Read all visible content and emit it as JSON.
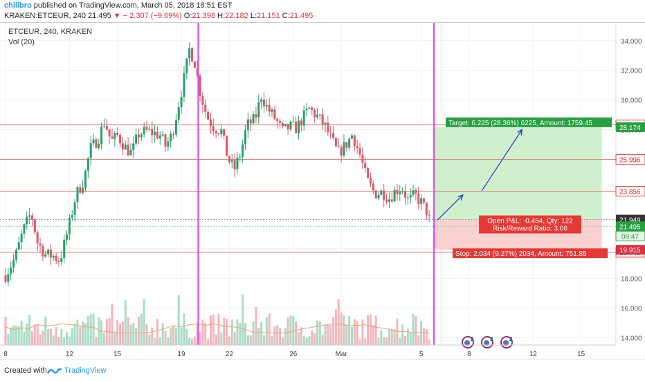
{
  "header": {
    "user": "chillbro",
    "published": " published on TradingView.com, March 05, 2018 18:51 EST",
    "symbol_line": "KRAKEN:ETCEUR, 240",
    "last": "21.495",
    "change": "− 2.307 (−9.69%)",
    "o_label": "O:",
    "o": "21.398",
    "h_label": "H:",
    "h": "22.182",
    "l_label": "L:",
    "l": "21.151",
    "c_label": "C:",
    "c": "21.495"
  },
  "chart_legend": {
    "symbol": "ETCEUR, 240, KRAKEN",
    "indicator": "Vol (20)"
  },
  "chart_data": {
    "type": "candlestick",
    "ylim": [
      13.5,
      35.2
    ],
    "y_ticks": [
      "14.000",
      "16.000",
      "18.000",
      "20.000",
      "22.000",
      "24.000",
      "26.000",
      "28.000",
      "30.000",
      "32.000",
      "34.000"
    ],
    "x_ticks": [
      {
        "label": "8",
        "day": 8
      },
      {
        "label": "12",
        "day": 12
      },
      {
        "label": "15",
        "day": 15
      },
      {
        "label": "19",
        "day": 19
      },
      {
        "label": "22",
        "day": 22
      },
      {
        "label": "26",
        "day": 26
      },
      {
        "label": "Mar",
        "day": 29
      },
      {
        "label": "5",
        "day": 34
      },
      {
        "label": "8",
        "day": 37
      },
      {
        "label": "12",
        "day": 41
      },
      {
        "label": "15",
        "day": 44
      }
    ],
    "price_keypoints": [
      [
        8.0,
        18.2
      ],
      [
        8.6,
        19.4
      ],
      [
        9.1,
        21.2
      ],
      [
        9.6,
        22.4
      ],
      [
        10.0,
        20.4
      ],
      [
        10.5,
        19.6
      ],
      [
        11.0,
        19.5
      ],
      [
        11.4,
        19.2
      ],
      [
        11.9,
        21.2
      ],
      [
        12.4,
        23.6
      ],
      [
        12.9,
        24.6
      ],
      [
        13.3,
        26.7
      ],
      [
        13.8,
        27.4
      ],
      [
        14.2,
        28.6
      ],
      [
        14.6,
        27.2
      ],
      [
        15.0,
        27.6
      ],
      [
        15.5,
        26.8
      ],
      [
        15.9,
        26.4
      ],
      [
        16.3,
        27.7
      ],
      [
        16.8,
        27.9
      ],
      [
        17.2,
        27.8
      ],
      [
        17.7,
        27.6
      ],
      [
        18.0,
        26.9
      ],
      [
        18.4,
        27.6
      ],
      [
        18.8,
        29.6
      ],
      [
        19.2,
        31.6
      ],
      [
        19.5,
        33.4
      ],
      [
        19.8,
        32.7
      ],
      [
        20.2,
        30.4
      ],
      [
        20.6,
        28.9
      ],
      [
        21.0,
        28.2
      ],
      [
        21.5,
        27.9
      ],
      [
        21.9,
        26.1
      ],
      [
        22.3,
        25.3
      ],
      [
        22.7,
        26.4
      ],
      [
        23.1,
        28.3
      ],
      [
        23.6,
        28.7
      ],
      [
        24.0,
        30.3
      ],
      [
        24.4,
        29.4
      ],
      [
        24.9,
        28.7
      ],
      [
        25.3,
        27.9
      ],
      [
        25.8,
        28.2
      ],
      [
        26.2,
        28.1
      ],
      [
        26.6,
        28.8
      ],
      [
        27.0,
        29.4
      ],
      [
        27.5,
        28.9
      ],
      [
        28.0,
        28.2
      ],
      [
        28.4,
        27.3
      ],
      [
        28.8,
        26.4
      ],
      [
        29.3,
        27.0
      ],
      [
        29.7,
        27.7
      ],
      [
        30.2,
        26.2
      ],
      [
        30.6,
        24.6
      ],
      [
        31.1,
        23.7
      ],
      [
        31.6,
        23.8
      ],
      [
        32.0,
        23.4
      ],
      [
        32.4,
        23.9
      ],
      [
        32.8,
        24.1
      ],
      [
        33.2,
        23.2
      ],
      [
        33.6,
        23.6
      ],
      [
        34.0,
        23.1
      ],
      [
        34.4,
        22.4
      ],
      [
        34.6,
        21.5
      ]
    ],
    "price_lines": [
      {
        "value": 28.324,
        "label": "28.324",
        "color": "#e57373"
      },
      {
        "value": 25.996,
        "label": "25.996",
        "color": "#e57373"
      },
      {
        "value": 23.856,
        "label": "23.856",
        "color": "#e57373"
      },
      {
        "value": 19.745,
        "label": "19.745",
        "color": "#e57373"
      }
    ],
    "axis_badges": [
      {
        "value": 28.174,
        "label": "28.174",
        "bg": "#26a041"
      },
      {
        "value": 21.949,
        "label": "21.949",
        "bg": "#333333"
      },
      {
        "value": 21.495,
        "label": "21.495",
        "bg": "#26a041"
      },
      {
        "value": 19.915,
        "label": "19.915",
        "bg": "#d8323f"
      }
    ],
    "countdown": "08:47",
    "vertical_lines": [
      20.05,
      34.8
    ],
    "position": {
      "x_start": 34.8,
      "x_end": 45.3,
      "entry": 21.949,
      "target": 28.174,
      "stop": 19.915,
      "target_label": "Target: 6.225 (28.36%) 6225, Amount: 1759.45",
      "stop_label": "Stop: 2.034 (9.27%) 2034, Amount: 751.85",
      "pnl_label": "Open P&L: -0.454, Qty: 122",
      "rr_label": "Risk/Reward Ratio: 3.06"
    },
    "arrow_path": [
      [
        35.0,
        21.9
      ],
      [
        36.6,
        23.6
      ],
      [
        37.8,
        23.9
      ],
      [
        40.3,
        28.0
      ]
    ],
    "colors": {
      "up": "#26a069",
      "down": "#e05566",
      "vline": "#e040fb",
      "target_fill": "#c8ecc4",
      "stop_fill": "#f9c9c9",
      "target_label_bg": "#26a041",
      "stop_label_bg": "#e53935",
      "arrow": "#1a3fbf",
      "vol_up": "#a8dcc4",
      "vol_down": "#f5b5bd",
      "ma": "#f0a070"
    }
  },
  "event_icons": [
    {
      "label": "2"
    },
    {
      "label": "2"
    },
    {
      "label": "2"
    }
  ],
  "footer": {
    "created_with": "Created with",
    "brand": "TradingView"
  }
}
